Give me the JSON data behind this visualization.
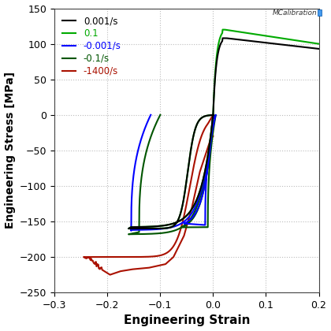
{
  "xlabel": "Engineering Strain",
  "ylabel": "Engineering Stress [MPa]",
  "xlim": [
    -0.3,
    0.2
  ],
  "ylim": [
    -250,
    150
  ],
  "xticks": [
    -0.3,
    -0.2,
    -0.1,
    0.0,
    0.1,
    0.2
  ],
  "yticks": [
    -250,
    -200,
    -150,
    -100,
    -50,
    0,
    50,
    100,
    150
  ],
  "bg_color": "#ffffff",
  "grid_color": "#bbbbbb",
  "legend_labels": [
    "0.001/s",
    "0.1",
    "-0.001/s",
    "-0.1/s",
    "-1400/s"
  ],
  "legend_colors": [
    "#000000",
    "#00aa00",
    "#0000ff",
    "#005500",
    "#aa1100"
  ],
  "watermark": "MCalibration"
}
